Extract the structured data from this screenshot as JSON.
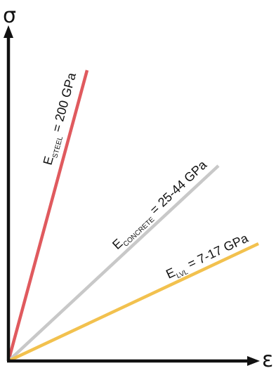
{
  "axes": {
    "y_label": "σ",
    "x_label": "ε"
  },
  "lines": [
    {
      "key": "steel",
      "color": "#E05A5E",
      "label_main": "E",
      "label_sub": "STEEL",
      "label_value": " = 200 GPa"
    },
    {
      "key": "concrete",
      "color": "#C8C8C8",
      "label_main": "E",
      "label_sub": "CONCRETE",
      "label_value": " = 25-44 GPa"
    },
    {
      "key": "lvl",
      "color": "#F2C14E",
      "label_main": "E",
      "label_sub": "LVL",
      "label_value": " = 7-17 GPa"
    }
  ]
}
